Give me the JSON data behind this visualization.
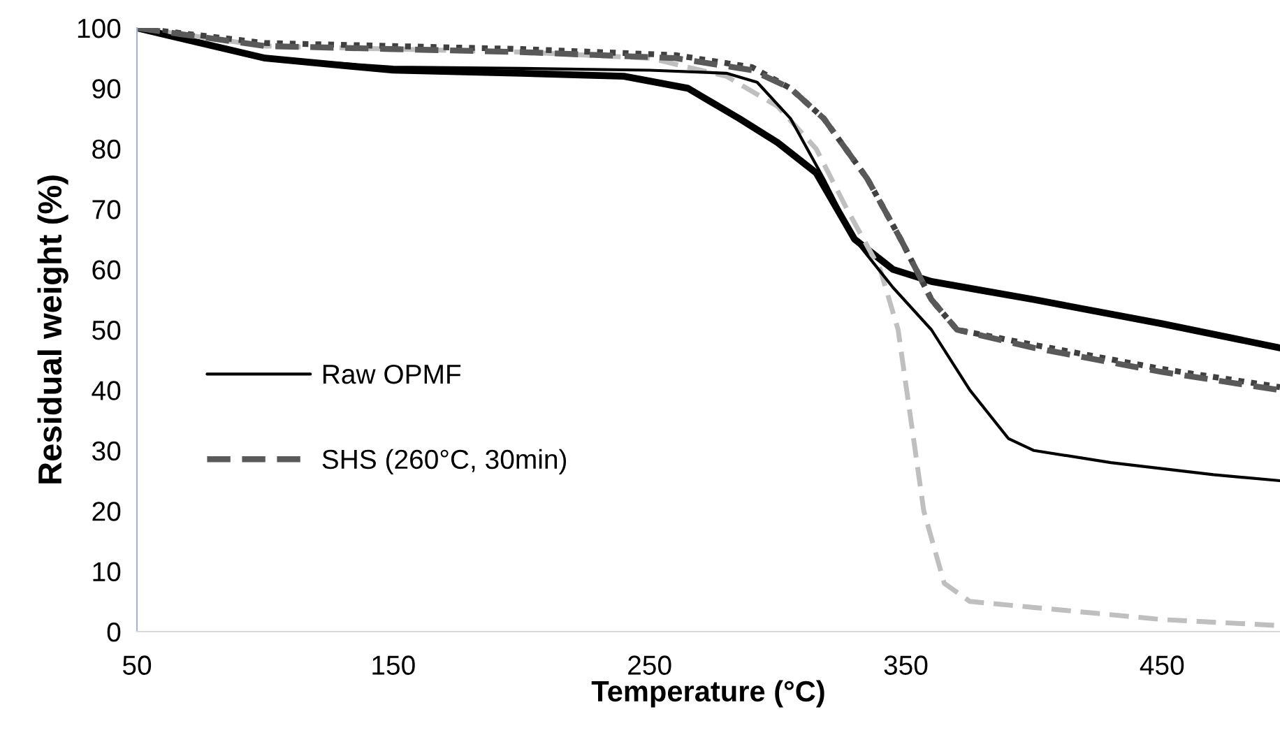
{
  "chart_data": {
    "type": "line",
    "xlabel": "Temperature (°C)",
    "ylabel": "Residual weight (%)",
    "xlim": [
      50,
      496
    ],
    "xticks": [
      50,
      150,
      250,
      350,
      450
    ],
    "ylim": [
      0,
      100
    ],
    "yticks": [
      0,
      10,
      20,
      30,
      40,
      50,
      60,
      70,
      80,
      90,
      100
    ],
    "grid": false,
    "legend": "bottom left",
    "marker": "none",
    "series": [
      {
        "color": "#000000",
        "line_style": "solid",
        "x": [
          50,
          100,
          150,
          200,
          240,
          265,
          285,
          300,
          315,
          330,
          345,
          360,
          380,
          400,
          450,
          496
        ],
        "values": [
          100,
          95,
          93,
          92.5,
          92,
          90,
          85,
          81,
          76,
          65,
          60,
          58,
          56.5,
          55,
          51,
          47
        ]
      },
      {
        "color": "#bfbfbf",
        "line_style": "dashed",
        "x": [
          50,
          100,
          150,
          200,
          250,
          280,
          300,
          315,
          327,
          340,
          347,
          352,
          357,
          365,
          375,
          400,
          450,
          496
        ],
        "values": [
          100,
          97,
          96.5,
          96,
          95,
          92,
          87,
          80,
          70,
          60,
          50,
          35,
          20,
          8,
          5,
          4,
          2,
          1
        ]
      },
      {
        "color": "#404040",
        "line_style": "dotted",
        "x": [
          50,
          100,
          150,
          200,
          260,
          290,
          305,
          318,
          335,
          348,
          360,
          370,
          400,
          450,
          496
        ],
        "values": [
          100,
          97.5,
          97,
          96.5,
          95.5,
          93.5,
          90,
          85,
          75,
          65,
          55,
          50,
          47.5,
          43.5,
          40.5
        ]
      },
      {
        "name": "Raw OPMF",
        "color": "#000000",
        "line_style": "solid",
        "x": [
          50,
          100,
          150,
          200,
          250,
          280,
          292,
          305,
          318,
          330,
          345,
          360,
          375,
          390,
          400,
          430,
          470,
          496
        ],
        "values": [
          100,
          95,
          93.5,
          93.3,
          93,
          92.5,
          91,
          85,
          75,
          65,
          57,
          50,
          40,
          32,
          30,
          28,
          26,
          25
        ]
      },
      {
        "name": "SHS (260°C, 30min)",
        "color": "#595959",
        "line_style": "dashed",
        "x": [
          50,
          100,
          150,
          200,
          260,
          290,
          305,
          318,
          335,
          348,
          360,
          370,
          400,
          450,
          496
        ],
        "values": [
          100,
          97,
          96.5,
          96,
          95,
          93,
          90,
          85,
          75,
          65,
          55,
          50,
          47,
          43,
          40
        ]
      }
    ]
  }
}
